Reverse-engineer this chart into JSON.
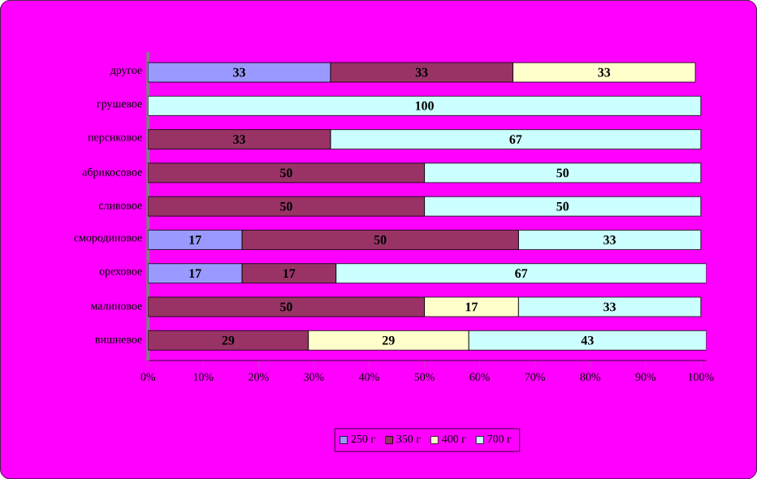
{
  "chart_data": {
    "type": "bar",
    "orientation": "horizontal",
    "stacked": true,
    "categories": [
      "другое",
      "грушевое",
      "персиковое",
      "абрикосовое",
      "сливовое",
      "смородиновое",
      "ореховое",
      "малиновое",
      "вишневое"
    ],
    "series": [
      {
        "name": "250 г",
        "color": "#9999ff",
        "values": [
          33,
          0,
          0,
          0,
          0,
          17,
          17,
          0,
          0
        ],
        "value_labels": [
          "33",
          null,
          null,
          null,
          null,
          "17",
          "17",
          null,
          null
        ]
      },
      {
        "name": "350 г",
        "color": "#993366",
        "values": [
          33,
          0,
          33,
          50,
          50,
          50,
          17,
          50,
          29
        ],
        "value_labels": [
          "33",
          null,
          "33",
          "50",
          "50",
          "50",
          "17",
          "50",
          "29"
        ]
      },
      {
        "name": "400 г",
        "color": "#ffffcc",
        "values": [
          33,
          0,
          0,
          0,
          0,
          0,
          0,
          17,
          29
        ],
        "value_labels": [
          "33",
          null,
          null,
          null,
          null,
          null,
          null,
          "17",
          "29"
        ]
      },
      {
        "name": "700 г",
        "color": "#ccffff",
        "values": [
          0,
          100,
          67,
          50,
          50,
          33,
          67,
          33,
          43
        ],
        "value_labels": [
          null,
          "100",
          "67",
          "50",
          "50",
          "33",
          "67",
          "33",
          "43"
        ]
      }
    ],
    "xlim": [
      0,
      101
    ],
    "xticks": [
      {
        "value": 0,
        "label": "0%"
      },
      {
        "value": 10,
        "label": "10%"
      },
      {
        "value": 20,
        "label": "20%"
      },
      {
        "value": 30,
        "label": "30%"
      },
      {
        "value": 40,
        "label": "40%"
      },
      {
        "value": 50,
        "label": "50%"
      },
      {
        "value": 60,
        "label": "60%"
      },
      {
        "value": 70,
        "label": "70%"
      },
      {
        "value": 80,
        "label": "80%"
      },
      {
        "value": 90,
        "label": "90%"
      },
      {
        "value": 100,
        "label": "100%"
      }
    ],
    "grid": false,
    "legend": "bottom"
  }
}
